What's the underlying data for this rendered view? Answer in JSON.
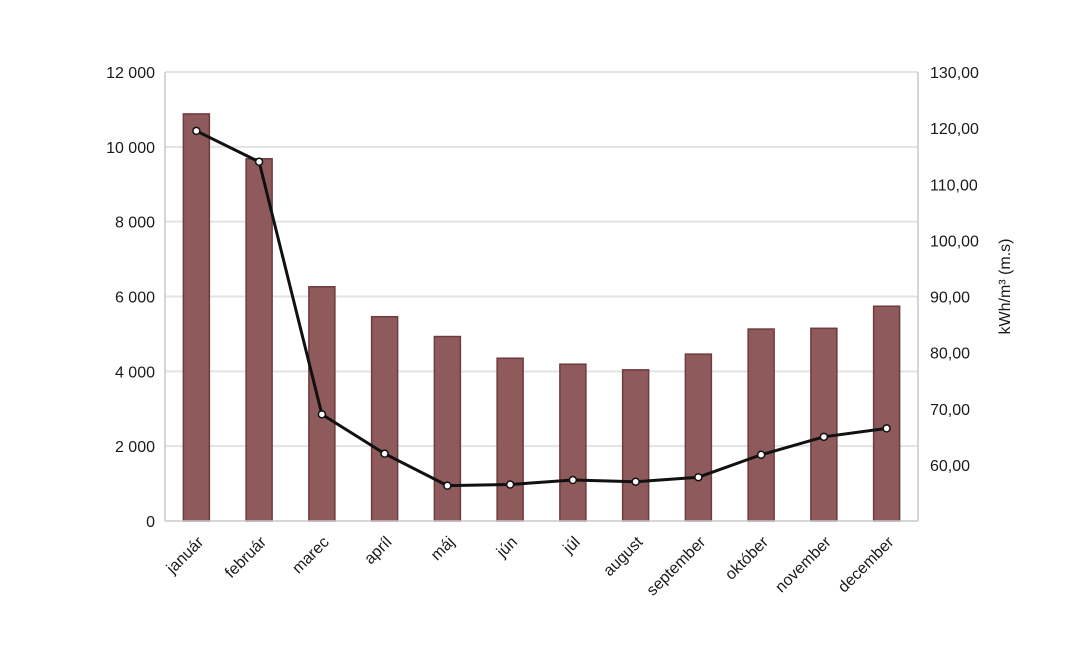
{
  "chart_data": {
    "type": "bar",
    "categories": [
      "január",
      "február",
      "marec",
      "apríl",
      "máj",
      "jún",
      "júl",
      "august",
      "september",
      "október",
      "november",
      "december"
    ],
    "series": [
      {
        "type": "bar",
        "axis": "left",
        "values": [
          10880,
          9680,
          6260,
          5460,
          4930,
          4350,
          4190,
          4040,
          4460,
          5130,
          5150,
          5740
        ],
        "color": "#8e5a5c"
      },
      {
        "type": "line",
        "axis": "right",
        "values": [
          119.5,
          114.0,
          69.0,
          62.0,
          56.3,
          56.5,
          57.3,
          57.0,
          57.8,
          61.8,
          65.0,
          66.5
        ],
        "color": "#111111"
      }
    ],
    "y_left": {
      "min": 0,
      "max": 12000,
      "ticks": [
        0,
        2000,
        4000,
        6000,
        8000,
        10000,
        12000
      ],
      "tick_labels": [
        "0",
        "2 000",
        "4 000",
        "6 000",
        "8 000",
        "10 000",
        "12 000"
      ]
    },
    "y_right": {
      "label": "kWh/m³ (m.s)",
      "min": 50,
      "max": 130,
      "ticks": [
        60,
        70,
        80,
        90,
        100,
        110,
        120,
        130
      ],
      "tick_labels": [
        "60,00",
        "70,00",
        "80,00",
        "90,00",
        "100,00",
        "110,00",
        "120,00",
        "130,00"
      ]
    },
    "grid": true,
    "legend": "none"
  }
}
